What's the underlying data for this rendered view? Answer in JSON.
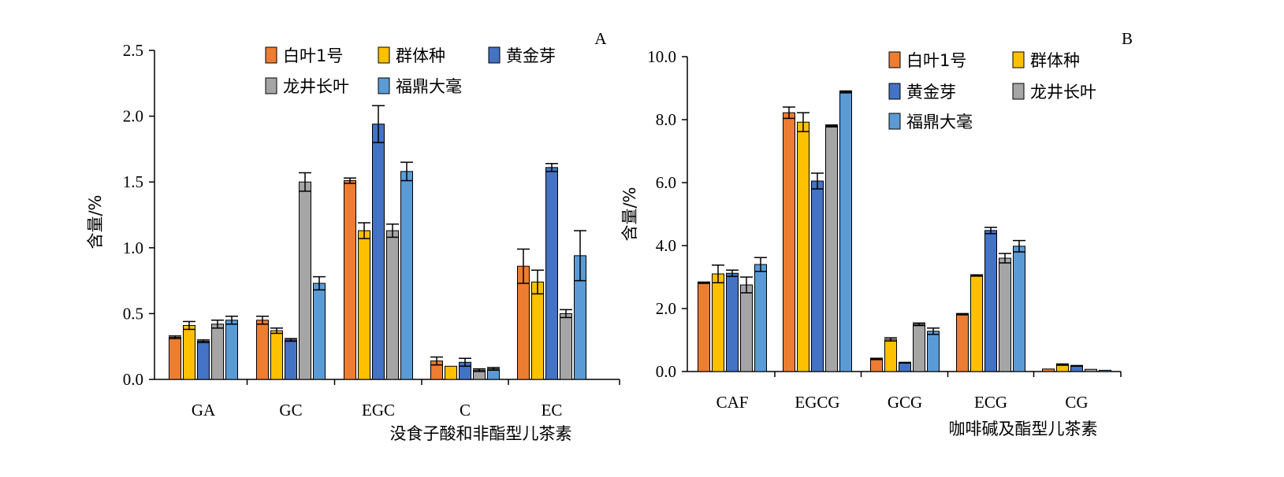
{
  "series_colors": {
    "白叶1号": "#ED7D31",
    "群体种": "#FFC000",
    "黄金芽": "#4472C4",
    "龙井长叶": "#A5A5A5",
    "福鼎大毫": "#5B9BD5"
  },
  "chart_data": [
    {
      "panel_label": "A",
      "type": "bar",
      "ylabel": "含量/%",
      "xlabel": "没食子酸和非酯型儿茶素",
      "ylim": [
        0,
        2.5
      ],
      "yticks": [
        "0.0",
        "0.5",
        "1.0",
        "1.5",
        "2.0",
        "2.5"
      ],
      "categories": [
        "GA",
        "GC",
        "EGC",
        "C",
        "EC"
      ],
      "legend_position": "top-center",
      "legend_layout": [
        [
          "白叶1号",
          "群体种",
          "黄金芽"
        ],
        [
          "龙井长叶",
          "福鼎大毫"
        ]
      ],
      "series": [
        {
          "name": "白叶1号",
          "values": [
            0.32,
            0.45,
            1.51,
            0.14,
            0.86
          ],
          "errors": [
            0.01,
            0.03,
            0.02,
            0.03,
            0.13
          ]
        },
        {
          "name": "群体种",
          "values": [
            0.41,
            0.37,
            1.13,
            0.1,
            0.74
          ],
          "errors": [
            0.03,
            0.02,
            0.06,
            0.0,
            0.09
          ]
        },
        {
          "name": "黄金芽",
          "values": [
            0.29,
            0.3,
            1.94,
            0.13,
            1.61
          ],
          "errors": [
            0.01,
            0.01,
            0.14,
            0.03,
            0.03
          ]
        },
        {
          "name": "龙井长叶",
          "values": [
            0.42,
            1.5,
            1.13,
            0.07,
            0.5
          ],
          "errors": [
            0.03,
            0.07,
            0.05,
            0.01,
            0.03
          ]
        },
        {
          "name": "福鼎大毫",
          "values": [
            0.45,
            0.73,
            1.58,
            0.08,
            0.94
          ],
          "errors": [
            0.03,
            0.05,
            0.07,
            0.01,
            0.19
          ]
        }
      ]
    },
    {
      "panel_label": "B",
      "type": "bar",
      "ylabel": "含量/%",
      "xlabel": "咖啡碱及酯型儿茶素",
      "ylim": [
        0,
        10
      ],
      "yticks": [
        "0.0",
        "2.0",
        "4.0",
        "6.0",
        "8.0",
        "10.0"
      ],
      "categories": [
        "CAF",
        "EGCG",
        "GCG",
        "ECG",
        "CG"
      ],
      "legend_position": "top-right",
      "legend_layout": [
        [
          "白叶1号",
          "群体种"
        ],
        [
          "黄金芽",
          "龙井长叶"
        ],
        [
          "福鼎大毫"
        ]
      ],
      "series": [
        {
          "name": "白叶1号",
          "values": [
            2.82,
            8.22,
            0.4,
            1.82,
            0.08
          ],
          "errors": [
            0.02,
            0.18,
            0.02,
            0.02,
            0.0
          ]
        },
        {
          "name": "群体种",
          "values": [
            3.1,
            7.92,
            1.02,
            3.05,
            0.22
          ],
          "errors": [
            0.28,
            0.3,
            0.05,
            0.02,
            0.02
          ]
        },
        {
          "name": "黄金芽",
          "values": [
            3.12,
            6.05,
            0.28,
            4.48,
            0.18
          ],
          "errors": [
            0.1,
            0.25,
            0.01,
            0.1,
            0.01
          ]
        },
        {
          "name": "龙井长叶",
          "values": [
            2.75,
            7.8,
            1.5,
            3.6,
            0.07
          ],
          "errors": [
            0.25,
            0.03,
            0.04,
            0.15,
            0.0
          ]
        },
        {
          "name": "福鼎大毫",
          "values": [
            3.4,
            8.88,
            1.28,
            3.98,
            0.04
          ],
          "errors": [
            0.22,
            0.03,
            0.1,
            0.18,
            0.0
          ]
        }
      ]
    }
  ]
}
